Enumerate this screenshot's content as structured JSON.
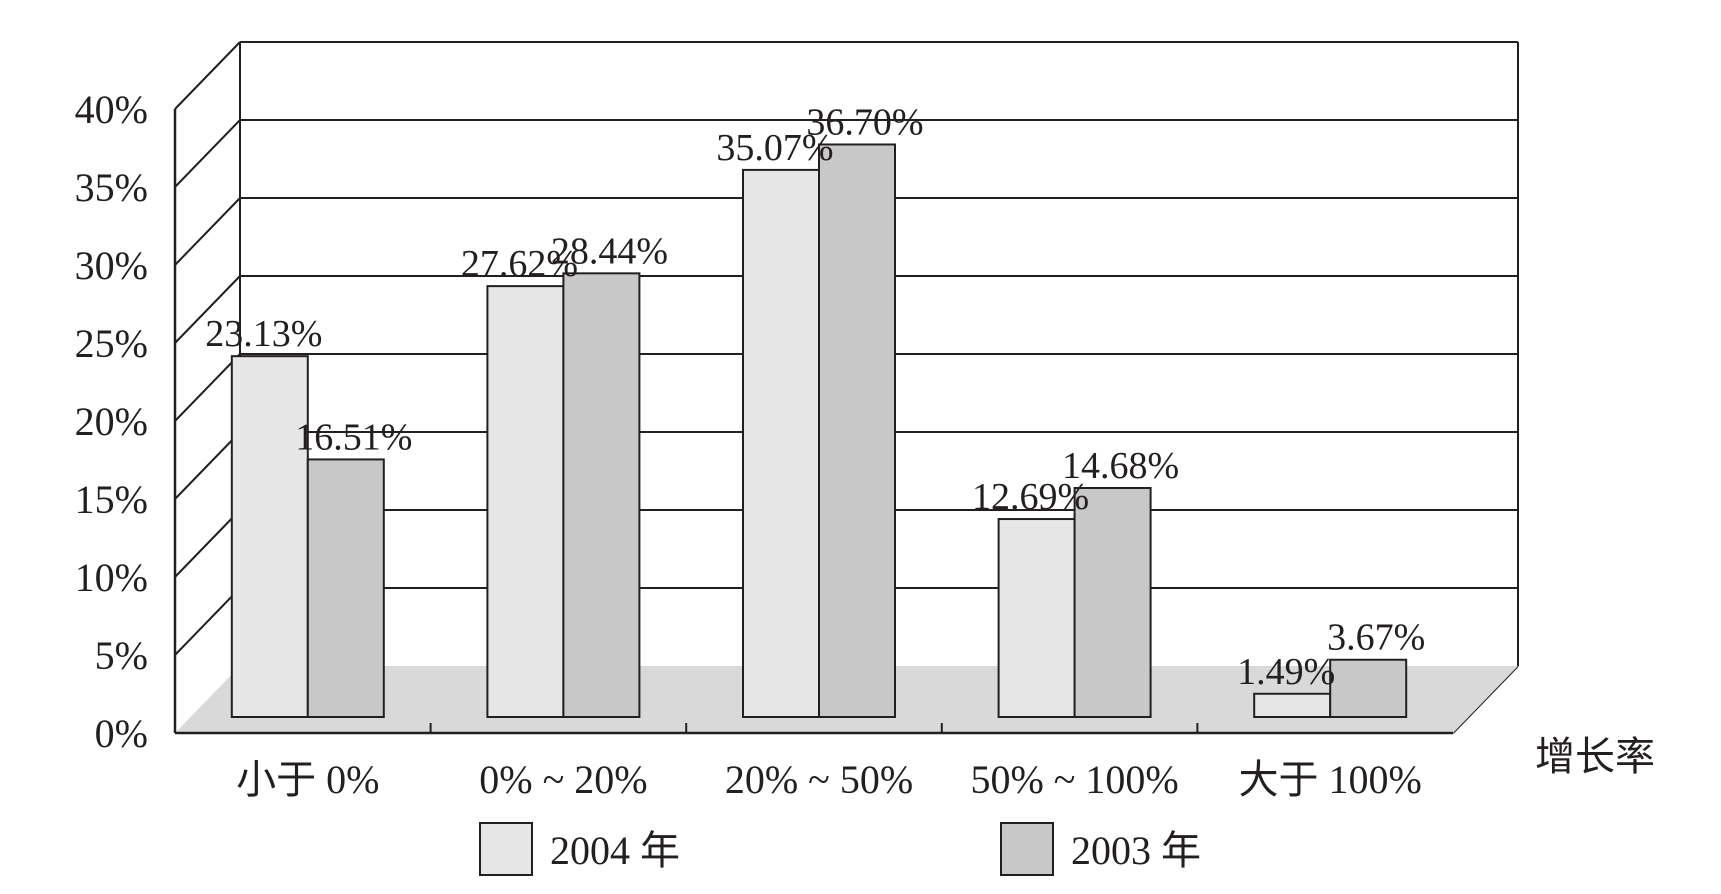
{
  "chart_data": {
    "type": "bar",
    "title": "",
    "xlabel": "增长率",
    "ylabel": "",
    "ylim": [
      0,
      40
    ],
    "yticks": [
      "0%",
      "5%",
      "10%",
      "15%",
      "20%",
      "25%",
      "30%",
      "35%",
      "40%"
    ],
    "grid": true,
    "style": "3d",
    "categories": [
      "小于 0%",
      "0% ~ 20%",
      "20% ~ 50%",
      "50% ~ 100%",
      "大于 100%"
    ],
    "series": [
      {
        "name": "2004 年",
        "values": [
          23.13,
          27.62,
          35.07,
          12.69,
          1.49
        ],
        "labels": [
          "23.13%",
          "27.62%",
          "35.07%",
          "12.69%",
          "1.49%"
        ],
        "color": "#e6e6e6"
      },
      {
        "name": "2003 年",
        "values": [
          16.51,
          28.44,
          36.7,
          14.68,
          3.67
        ],
        "labels": [
          "16.51%",
          "28.44%",
          "36.70%",
          "14.68%",
          "3.67%"
        ],
        "color": "#c8c8c8"
      }
    ],
    "legend_position": "bottom",
    "colors": {
      "line": "#231f20",
      "floor": "#d9d9d9",
      "background": "#ffffff"
    }
  }
}
